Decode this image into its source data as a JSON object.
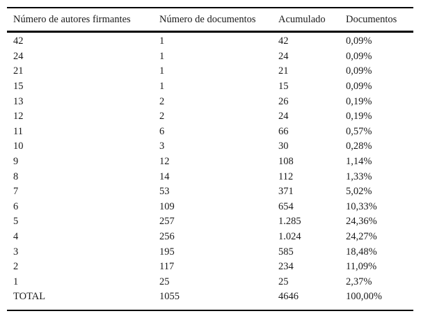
{
  "table": {
    "headers": [
      "Número de autores firmantes",
      "Número de documentos",
      "Acumulado",
      "Documentos"
    ],
    "rows": [
      [
        "42",
        "1",
        "42",
        "0,09%"
      ],
      [
        "24",
        "1",
        "24",
        "0,09%"
      ],
      [
        "21",
        "1",
        "21",
        "0,09%"
      ],
      [
        "15",
        "1",
        "15",
        "0,09%"
      ],
      [
        "13",
        "2",
        "26",
        "0,19%"
      ],
      [
        "12",
        "2",
        "24",
        "0,19%"
      ],
      [
        "11",
        "6",
        "66",
        "0,57%"
      ],
      [
        "10",
        "3",
        "30",
        "0,28%"
      ],
      [
        "9",
        "12",
        "108",
        "1,14%"
      ],
      [
        "8",
        "14",
        "112",
        "1,33%"
      ],
      [
        "7",
        "53",
        "371",
        "5,02%"
      ],
      [
        "6",
        "109",
        "654",
        "10,33%"
      ],
      [
        "5",
        "257",
        "1.285",
        "24,36%"
      ],
      [
        "4",
        "256",
        "1.024",
        "24,27%"
      ],
      [
        "3",
        "195",
        "585",
        "18,48%"
      ],
      [
        "2",
        "117",
        "234",
        "11,09%"
      ],
      [
        "1",
        "25",
        "25",
        "2,37%"
      ],
      [
        "TOTAL",
        "1055",
        "4646",
        "100,00%"
      ]
    ]
  },
  "colors": {
    "background": "#ffffff",
    "text": "#1a1a1a",
    "rule": "#000000"
  },
  "chart_data": {
    "type": "table",
    "title": "",
    "columns": [
      "Número de autores firmantes",
      "Número de documentos",
      "Acumulado",
      "Documentos"
    ],
    "authors_per_document": [
      42,
      24,
      21,
      15,
      13,
      12,
      11,
      10,
      9,
      8,
      7,
      6,
      5,
      4,
      3,
      2,
      1
    ],
    "num_documents": [
      1,
      1,
      1,
      1,
      2,
      2,
      6,
      3,
      12,
      14,
      53,
      109,
      257,
      256,
      195,
      117,
      25
    ],
    "accumulated": [
      42,
      24,
      21,
      15,
      26,
      24,
      66,
      30,
      108,
      112,
      371,
      654,
      1285,
      1024,
      585,
      234,
      25
    ],
    "documents_pct": [
      0.09,
      0.09,
      0.09,
      0.09,
      0.19,
      0.19,
      0.57,
      0.28,
      1.14,
      1.33,
      5.02,
      10.33,
      24.36,
      24.27,
      18.48,
      11.09,
      2.37
    ],
    "total": {
      "label": "TOTAL",
      "num_documents": 1055,
      "accumulated": 4646,
      "documents_pct": 100.0
    }
  }
}
